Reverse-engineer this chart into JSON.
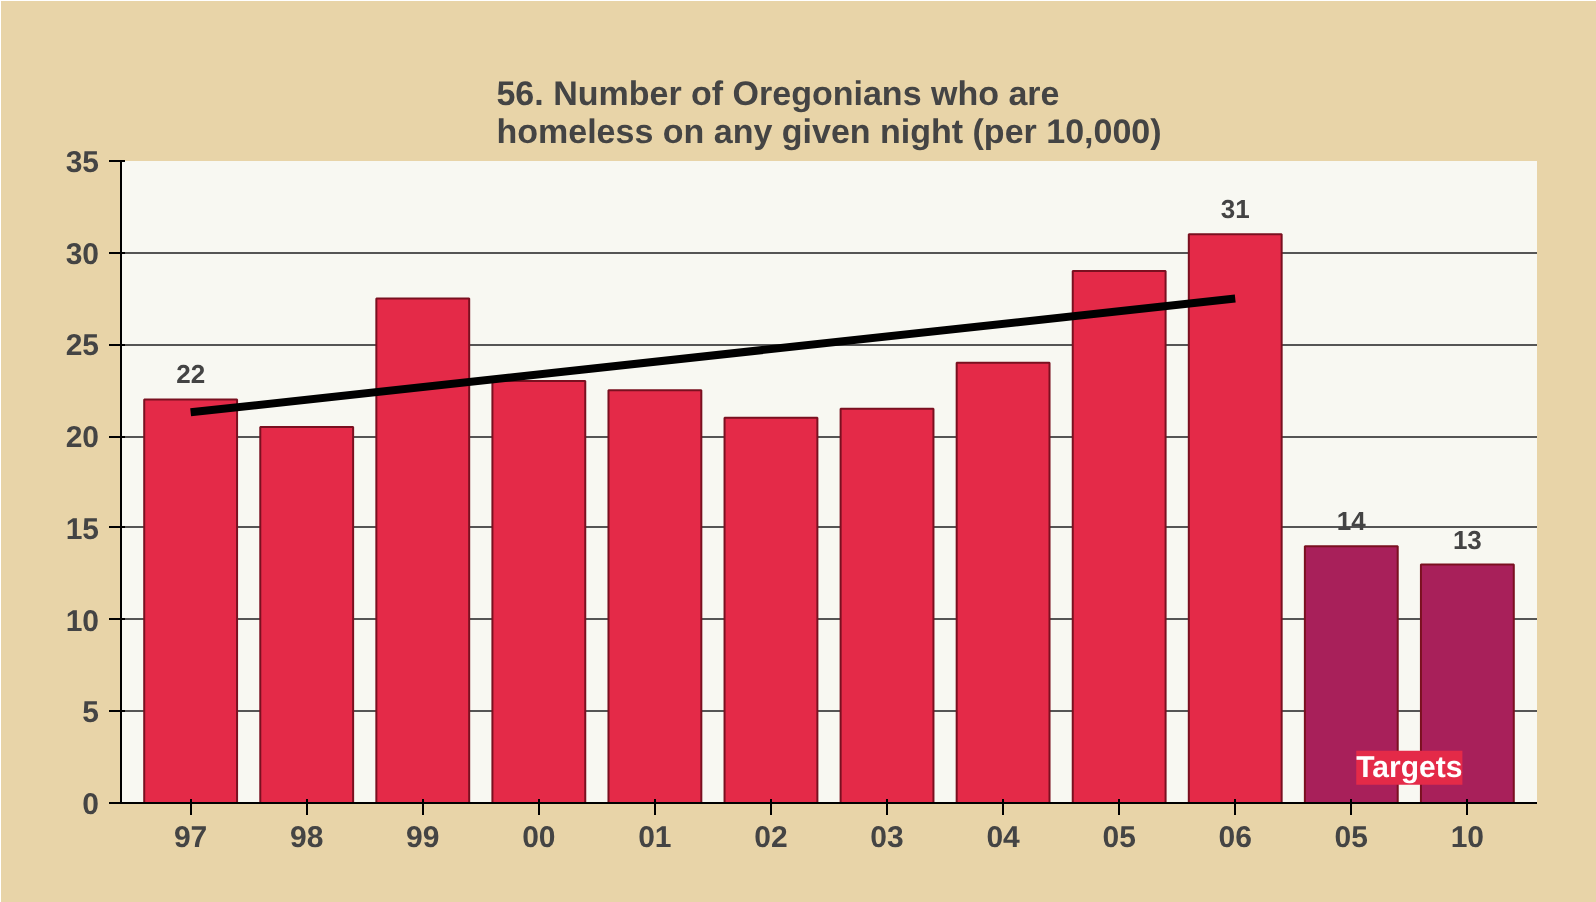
{
  "chart_data": {
    "type": "bar",
    "title": "56. Number of Oregonians who are\nhomeless on any given night (per 10,000)",
    "categories": [
      "97",
      "98",
      "99",
      "00",
      "01",
      "02",
      "03",
      "04",
      "05",
      "06",
      "05",
      "10"
    ],
    "series": [
      {
        "values": [
          22,
          20.5,
          27.5,
          23,
          22.5,
          21,
          21.5,
          24,
          29,
          31,
          14,
          13
        ],
        "colors": [
          "#e42a48",
          "#e42a48",
          "#e42a48",
          "#e42a48",
          "#e42a48",
          "#e42a48",
          "#e42a48",
          "#e42a48",
          "#e42a48",
          "#e42a48",
          "#a8205a",
          "#a8205a"
        ],
        "value_labels": [
          "22",
          null,
          null,
          null,
          null,
          null,
          null,
          null,
          null,
          "31",
          "14",
          "13"
        ]
      },
      {
        "type": "line",
        "x": [
          "97",
          "06"
        ],
        "values": [
          21.3,
          27.5
        ],
        "color": "#000000"
      }
    ],
    "ylim": [
      0,
      35
    ],
    "yticks": [
      0,
      5,
      10,
      15,
      20,
      25,
      30,
      35
    ],
    "grid": "y",
    "annotations": [
      "Targets"
    ]
  }
}
